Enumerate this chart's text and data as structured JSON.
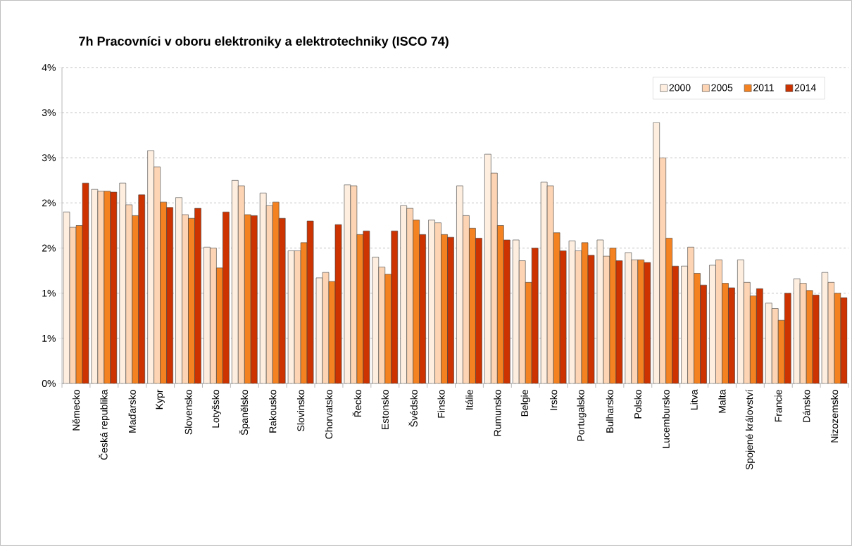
{
  "chart_data": {
    "type": "bar",
    "title": "7h Pracovníci v oboru elektroniky a elektrotechniky (ISCO 74)",
    "categories": [
      "Německo",
      "Česká republika",
      "Maďarsko",
      "Kypr",
      "Slovensko",
      "Lotyšsko",
      "Španělsko",
      "Rakousko",
      "Slovinsko",
      "Chorvatsko",
      "Řecko",
      "Estonsko",
      "Švédsko",
      "Finsko",
      "Itálie",
      "Rumunsko",
      "Belgie",
      "Irsko",
      "Portugalsko",
      "Bulharsko",
      "Polsko",
      "Lucembursko",
      "Litva",
      "Malta",
      "Spojené království",
      "Francie",
      "Dánsko",
      "Nizozemsko"
    ],
    "series": [
      {
        "name": "2000",
        "color": "#fdeee0",
        "values": [
          1.9,
          2.15,
          2.22,
          2.58,
          2.06,
          1.51,
          2.25,
          2.11,
          1.47,
          1.17,
          2.2,
          1.4,
          1.97,
          1.81,
          2.19,
          2.54,
          1.59,
          2.23,
          1.58,
          1.59,
          1.45,
          2.89,
          1.3,
          1.31,
          1.37,
          0.89,
          1.16,
          1.23
        ]
      },
      {
        "name": "2005",
        "color": "#fdd5b4",
        "values": [
          1.73,
          2.13,
          1.98,
          2.4,
          1.87,
          1.5,
          2.19,
          1.97,
          1.47,
          1.23,
          2.19,
          1.29,
          1.94,
          1.78,
          1.86,
          2.33,
          1.36,
          2.19,
          1.47,
          1.41,
          1.37,
          2.5,
          1.51,
          1.37,
          1.12,
          0.83,
          1.11,
          1.12
        ]
      },
      {
        "name": "2011",
        "color": "#f58220",
        "values": [
          1.75,
          2.13,
          1.86,
          2.01,
          1.83,
          1.28,
          1.87,
          2.01,
          1.56,
          1.13,
          1.65,
          1.21,
          1.81,
          1.65,
          1.72,
          1.75,
          1.12,
          1.67,
          1.56,
          1.5,
          1.37,
          1.61,
          1.22,
          1.11,
          0.97,
          0.7,
          1.03,
          1.0
        ]
      },
      {
        "name": "2014",
        "color": "#cc3300",
        "values": [
          2.22,
          2.12,
          2.09,
          1.95,
          1.94,
          1.9,
          1.86,
          1.83,
          1.8,
          1.76,
          1.69,
          1.69,
          1.65,
          1.62,
          1.61,
          1.59,
          1.5,
          1.47,
          1.42,
          1.36,
          1.34,
          1.3,
          1.09,
          1.06,
          1.05,
          1.0,
          0.98,
          0.95
        ]
      }
    ],
    "ylim": [
      0,
      3.5
    ],
    "yticks": [
      {
        "value": 0,
        "label": "0%"
      },
      {
        "value": 0.5,
        "label": "1%"
      },
      {
        "value": 1,
        "label": "1%"
      },
      {
        "value": 1.5,
        "label": "2%"
      },
      {
        "value": 2,
        "label": "2%"
      },
      {
        "value": 2.5,
        "label": "3%"
      },
      {
        "value": 3,
        "label": "3%"
      },
      {
        "value": 3.5,
        "label": "4%"
      }
    ],
    "grid": "y",
    "legend": "top right"
  }
}
